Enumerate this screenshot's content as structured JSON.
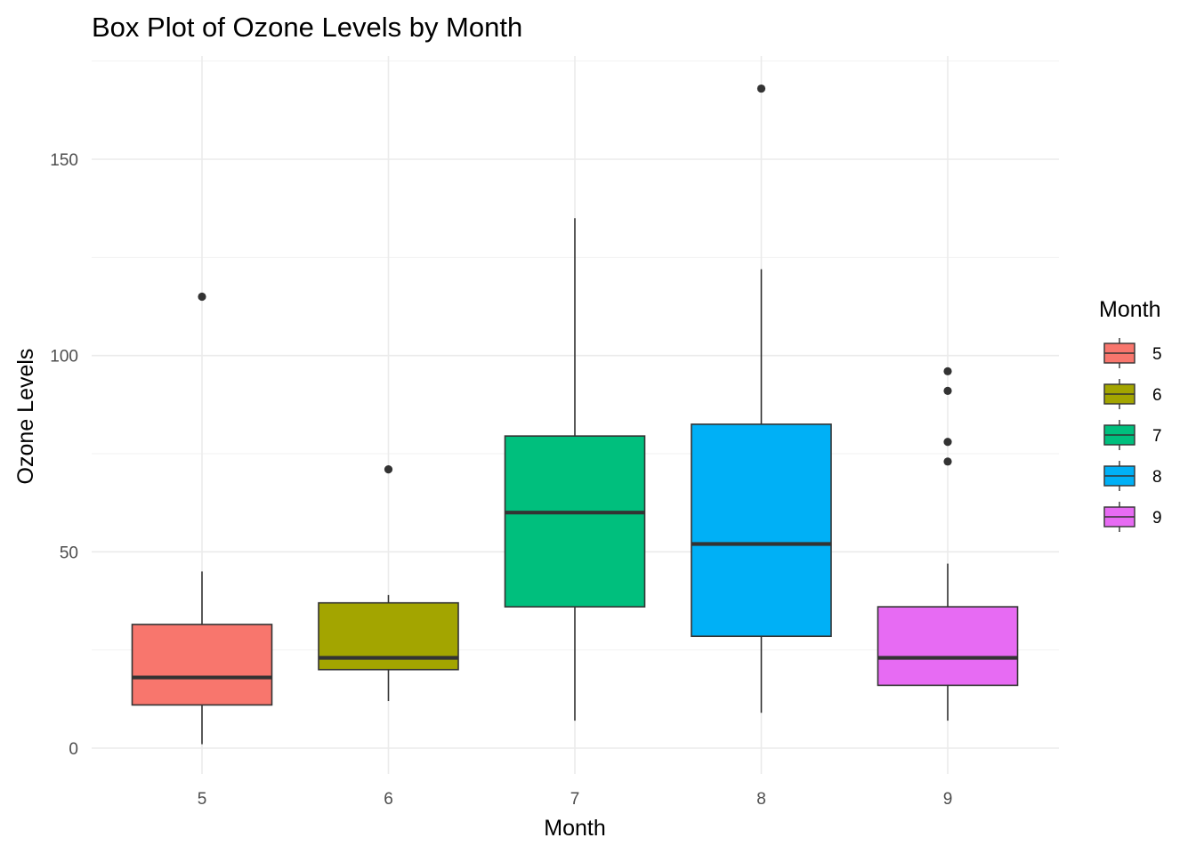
{
  "chart_data": {
    "type": "box",
    "title": "Box Plot of Ozone Levels by Month",
    "xlabel": "Month",
    "ylabel": "Ozone Levels",
    "categories": [
      "5",
      "6",
      "7",
      "8",
      "9"
    ],
    "ylim": [
      -7,
      175
    ],
    "yticks": [
      0,
      50,
      100,
      150
    ],
    "grid": true,
    "legend": {
      "title": "Month",
      "position": "right",
      "entries": [
        "5",
        "6",
        "7",
        "8",
        "9"
      ]
    },
    "colors": [
      "#F8766D",
      "#A3A500",
      "#00BF7D",
      "#00B0F6",
      "#E76BF3"
    ],
    "series": [
      {
        "month": "5",
        "whisker_low": 1,
        "q1": 11,
        "median": 18,
        "q3": 31.5,
        "whisker_high": 45,
        "outliers": [
          115
        ]
      },
      {
        "month": "6",
        "whisker_low": 12,
        "q1": 20,
        "median": 23,
        "q3": 37,
        "whisker_high": 39,
        "outliers": [
          71
        ]
      },
      {
        "month": "7",
        "whisker_low": 7,
        "q1": 36,
        "median": 60,
        "q3": 79.5,
        "whisker_high": 135,
        "outliers": []
      },
      {
        "month": "8",
        "whisker_low": 9,
        "q1": 28.5,
        "median": 52,
        "q3": 82.5,
        "whisker_high": 122,
        "outliers": [
          168
        ]
      },
      {
        "month": "9",
        "whisker_low": 7,
        "q1": 16,
        "median": 23,
        "q3": 36,
        "whisker_high": 47,
        "outliers": [
          73,
          78,
          91,
          96
        ]
      }
    ]
  }
}
